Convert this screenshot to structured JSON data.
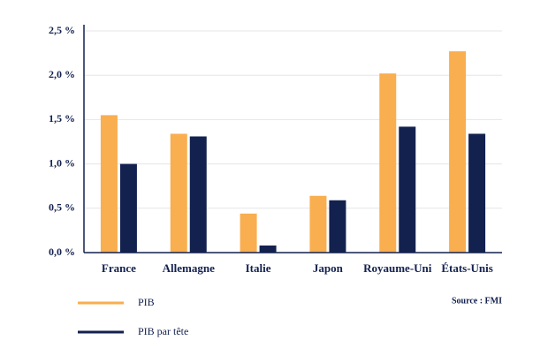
{
  "chart_data": {
    "type": "bar",
    "source": "Source : FMI",
    "categories": [
      "France",
      "Allemagne",
      "Italie",
      "Japon",
      "Royaume-Uni",
      "États-Unis"
    ],
    "series": [
      {
        "name": "PIB",
        "color": "#f9ae4f",
        "values": [
          1.55,
          1.34,
          0.44,
          0.64,
          2.02,
          2.27
        ]
      },
      {
        "name": "PIB par tête",
        "color": "#13214f",
        "values": [
          1.0,
          1.31,
          0.08,
          0.59,
          1.42,
          1.34
        ]
      }
    ],
    "ylim": [
      0,
      2.5
    ],
    "yticks": [
      {
        "value": 0,
        "label": "0,0 %"
      },
      {
        "value": 0.5,
        "label": "0,5 %"
      },
      {
        "value": 1,
        "label": "1,0 %"
      },
      {
        "value": 1.5,
        "label": "1,5 %"
      },
      {
        "value": 2,
        "label": "2,0 %"
      },
      {
        "value": 2.5,
        "label": "2,5 %"
      }
    ],
    "grid": true
  }
}
